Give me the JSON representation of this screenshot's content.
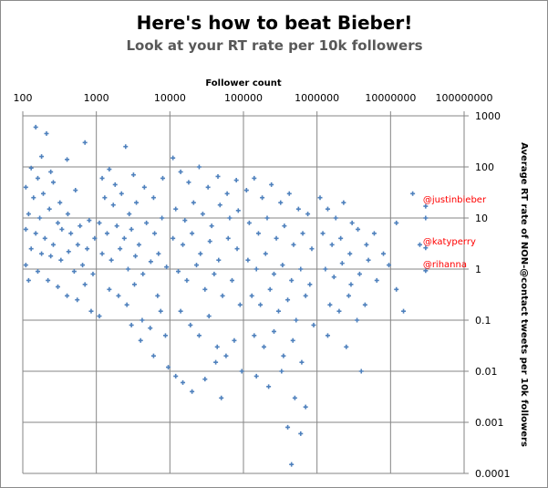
{
  "title": "Here's how to beat Bieber!",
  "subtitle": "Look at your RT rate per 10k followers",
  "chart_data": {
    "type": "scatter",
    "title": "Here's how to beat Bieber!",
    "subtitle": "Look at your RT rate per 10k followers",
    "xlabel": "Follower count",
    "ylabel": "Average RT rate of NON-@contact tweets per 10k followers",
    "xscale": "log",
    "yscale": "log",
    "xlim": [
      100,
      100000000
    ],
    "ylim": [
      0.0001,
      1000
    ],
    "x_axis_position": "top",
    "y_axis_position": "right",
    "grid": true,
    "marker_color": "#4f81bd",
    "annotation_color": "#ff0000",
    "xticks": [
      "100",
      "1000",
      "10000",
      "100000",
      "1000000",
      "10000000",
      "100000000"
    ],
    "yticks": [
      "1000",
      "100",
      "10",
      "1",
      "0.1",
      "0.01",
      "0.001",
      "0.0001"
    ],
    "annotations": [
      {
        "label": "@justinbieber",
        "x": 30000000,
        "y": 17
      },
      {
        "label": "@katyperry",
        "x": 30000000,
        "y": 2.6
      },
      {
        "label": "@rihanna",
        "x": 30000000,
        "y": 0.93
      }
    ],
    "points": [
      [
        150,
        600
      ],
      [
        210,
        450
      ],
      [
        180,
        160
      ],
      [
        400,
        140
      ],
      [
        700,
        300
      ],
      [
        130,
        95
      ],
      [
        160,
        60
      ],
      [
        240,
        80
      ],
      [
        110,
        40
      ],
      [
        140,
        25
      ],
      [
        190,
        30
      ],
      [
        260,
        50
      ],
      [
        320,
        20
      ],
      [
        120,
        12
      ],
      [
        170,
        10
      ],
      [
        230,
        15
      ],
      [
        300,
        8
      ],
      [
        410,
        12
      ],
      [
        520,
        35
      ],
      [
        110,
        6
      ],
      [
        150,
        5
      ],
      [
        200,
        4
      ],
      [
        260,
        3
      ],
      [
        340,
        6
      ],
      [
        450,
        5
      ],
      [
        600,
        7
      ],
      [
        800,
        9
      ],
      [
        130,
        2.5
      ],
      [
        180,
        2
      ],
      [
        240,
        1.8
      ],
      [
        330,
        1.5
      ],
      [
        420,
        2.2
      ],
      [
        560,
        3
      ],
      [
        750,
        2.5
      ],
      [
        950,
        4
      ],
      [
        110,
        1.2
      ],
      [
        160,
        0.9
      ],
      [
        220,
        0.6
      ],
      [
        300,
        0.45
      ],
      [
        400,
        0.3
      ],
      [
        550,
        0.25
      ],
      [
        700,
        0.5
      ],
      [
        900,
        0.8
      ],
      [
        120,
        0.6
      ],
      [
        500,
        0.9
      ],
      [
        650,
        1.2
      ],
      [
        850,
        0.15
      ],
      [
        1100,
        0.12
      ],
      [
        1200,
        60
      ],
      [
        1500,
        90
      ],
      [
        1800,
        45
      ],
      [
        2500,
        250
      ],
      [
        3200,
        70
      ],
      [
        1300,
        25
      ],
      [
        1700,
        18
      ],
      [
        2200,
        30
      ],
      [
        2800,
        12
      ],
      [
        3500,
        20
      ],
      [
        4500,
        40
      ],
      [
        6000,
        25
      ],
      [
        8000,
        60
      ],
      [
        1100,
        8
      ],
      [
        1400,
        5
      ],
      [
        1900,
        7
      ],
      [
        2400,
        4
      ],
      [
        3000,
        6
      ],
      [
        3800,
        3
      ],
      [
        4800,
        8
      ],
      [
        6200,
        5
      ],
      [
        7800,
        10
      ],
      [
        1200,
        2
      ],
      [
        1600,
        1.5
      ],
      [
        2100,
        2.5
      ],
      [
        2700,
        1
      ],
      [
        3400,
        1.8
      ],
      [
        4300,
        0.8
      ],
      [
        5500,
        1.4
      ],
      [
        7000,
        2
      ],
      [
        9000,
        1.1
      ],
      [
        1500,
        0.4
      ],
      [
        2000,
        0.3
      ],
      [
        2600,
        0.2
      ],
      [
        3300,
        0.5
      ],
      [
        4200,
        0.1
      ],
      [
        5400,
        0.07
      ],
      [
        6800,
        0.3
      ],
      [
        8700,
        0.05
      ],
      [
        3000,
        0.08
      ],
      [
        4000,
        0.04
      ],
      [
        6000,
        0.02
      ],
      [
        9500,
        0.012
      ],
      [
        12000,
        0.008
      ],
      [
        15000,
        0.006
      ],
      [
        7500,
        0.15
      ],
      [
        11000,
        150
      ],
      [
        14000,
        80
      ],
      [
        18000,
        50
      ],
      [
        25000,
        100
      ],
      [
        33000,
        40
      ],
      [
        45000,
        65
      ],
      [
        60000,
        30
      ],
      [
        80000,
        55
      ],
      [
        12000,
        15
      ],
      [
        16000,
        9
      ],
      [
        21000,
        20
      ],
      [
        28000,
        12
      ],
      [
        37000,
        7
      ],
      [
        48000,
        18
      ],
      [
        65000,
        10
      ],
      [
        85000,
        14
      ],
      [
        11000,
        4
      ],
      [
        15000,
        3
      ],
      [
        20000,
        5
      ],
      [
        26000,
        2
      ],
      [
        35000,
        3.5
      ],
      [
        46000,
        1.5
      ],
      [
        62000,
        4
      ],
      [
        82000,
        2.5
      ],
      [
        13000,
        0.9
      ],
      [
        17000,
        0.6
      ],
      [
        23000,
        1.2
      ],
      [
        30000,
        0.4
      ],
      [
        40000,
        0.8
      ],
      [
        52000,
        0.3
      ],
      [
        70000,
        0.6
      ],
      [
        90000,
        0.2
      ],
      [
        14000,
        0.15
      ],
      [
        19000,
        0.08
      ],
      [
        25000,
        0.05
      ],
      [
        34000,
        0.12
      ],
      [
        44000,
        0.03
      ],
      [
        58000,
        0.02
      ],
      [
        75000,
        0.04
      ],
      [
        95000,
        0.01
      ],
      [
        20000,
        0.004
      ],
      [
        30000,
        0.007
      ],
      [
        50000,
        0.003
      ],
      [
        42000,
        0.015
      ],
      [
        110000,
        35
      ],
      [
        140000,
        60
      ],
      [
        180000,
        25
      ],
      [
        240000,
        45
      ],
      [
        320000,
        20
      ],
      [
        420000,
        30
      ],
      [
        560000,
        15
      ],
      [
        750000,
        12
      ],
      [
        120000,
        8
      ],
      [
        160000,
        5
      ],
      [
        210000,
        10
      ],
      [
        280000,
        4
      ],
      [
        360000,
        7
      ],
      [
        480000,
        3
      ],
      [
        640000,
        5
      ],
      [
        850000,
        2.5
      ],
      [
        115000,
        1.5
      ],
      [
        150000,
        1
      ],
      [
        200000,
        2
      ],
      [
        260000,
        0.8
      ],
      [
        340000,
        1.2
      ],
      [
        450000,
        0.6
      ],
      [
        600000,
        1
      ],
      [
        800000,
        0.5
      ],
      [
        130000,
        0.3
      ],
      [
        170000,
        0.2
      ],
      [
        230000,
        0.4
      ],
      [
        300000,
        0.15
      ],
      [
        400000,
        0.25
      ],
      [
        520000,
        0.1
      ],
      [
        700000,
        0.3
      ],
      [
        900000,
        0.08
      ],
      [
        140000,
        0.05
      ],
      [
        190000,
        0.03
      ],
      [
        260000,
        0.06
      ],
      [
        350000,
        0.02
      ],
      [
        470000,
        0.04
      ],
      [
        620000,
        0.015
      ],
      [
        150000,
        0.008
      ],
      [
        220000,
        0.005
      ],
      [
        330000,
        0.01
      ],
      [
        500000,
        0.003
      ],
      [
        700000,
        0.002
      ],
      [
        400000,
        0.0008
      ],
      [
        450000,
        0.00015
      ],
      [
        600000,
        0.0006
      ],
      [
        1100000,
        25
      ],
      [
        1400000,
        15
      ],
      [
        1800000,
        10
      ],
      [
        2300000,
        20
      ],
      [
        3000000,
        8
      ],
      [
        1200000,
        5
      ],
      [
        1600000,
        3
      ],
      [
        2100000,
        4
      ],
      [
        2800000,
        2
      ],
      [
        3600000,
        6
      ],
      [
        4700000,
        3
      ],
      [
        6000000,
        5
      ],
      [
        1300000,
        1
      ],
      [
        1700000,
        0.7
      ],
      [
        2200000,
        1.3
      ],
      [
        2900000,
        0.5
      ],
      [
        3800000,
        0.8
      ],
      [
        5000000,
        1.5
      ],
      [
        6500000,
        0.6
      ],
      [
        1500000,
        0.2
      ],
      [
        2000000,
        0.15
      ],
      [
        2700000,
        0.3
      ],
      [
        3500000,
        0.1
      ],
      [
        4500000,
        0.2
      ],
      [
        1400000,
        0.05
      ],
      [
        2500000,
        0.03
      ],
      [
        4000000,
        0.01
      ],
      [
        8000000,
        2
      ],
      [
        9500000,
        1.2
      ],
      [
        12000000,
        0.4
      ],
      [
        15000000,
        0.15
      ],
      [
        20000000,
        30
      ],
      [
        25000000,
        3
      ],
      [
        30000000,
        10
      ],
      [
        12000000,
        8
      ]
    ]
  }
}
